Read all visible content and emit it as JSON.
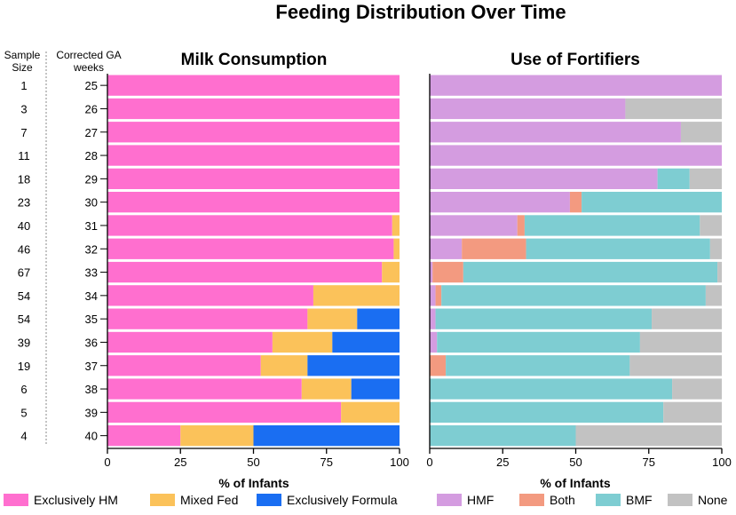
{
  "figure_title": "Feeding Distribution Over Time",
  "headers": {
    "sample_size": [
      "Sample",
      "Size"
    ],
    "corrected_ga": [
      "Corrected GA",
      "weeks"
    ]
  },
  "colors": {
    "Exclusively HM": "#ff6fcf",
    "Mixed Fed": "#fbc25a",
    "Exclusively Formula": "#1a6ef2",
    "HMF": "#d49ce0",
    "Both": "#f39a80",
    "BMF": "#7ecdd2",
    "None": "#c2c2c2"
  },
  "chart_data": [
    {
      "type": "bar",
      "orientation": "horizontal",
      "stacked": true,
      "title": "Milk Consumption",
      "xlabel": "% of Infants",
      "ylabel": "Corrected GA weeks",
      "xlim": [
        0,
        100
      ],
      "xticks": [
        0,
        25,
        50,
        75,
        100
      ],
      "categories": [
        "25",
        "26",
        "27",
        "28",
        "29",
        "30",
        "31",
        "32",
        "33",
        "34",
        "35",
        "36",
        "37",
        "38",
        "39",
        "40"
      ],
      "sample_sizes": [
        1,
        3,
        7,
        11,
        18,
        23,
        40,
        46,
        67,
        54,
        54,
        39,
        19,
        6,
        5,
        4
      ],
      "series": [
        {
          "name": "Exclusively HM",
          "values": [
            100,
            100,
            100,
            100,
            100,
            100,
            97.5,
            98,
            94,
            70.5,
            68.5,
            56.5,
            52.5,
            66.5,
            80,
            25
          ]
        },
        {
          "name": "Mixed Fed",
          "values": [
            0,
            0,
            0,
            0,
            0,
            0,
            2.5,
            2,
            6,
            29.5,
            17,
            20.5,
            16,
            17,
            20,
            25
          ]
        },
        {
          "name": "Exclusively Formula",
          "values": [
            0,
            0,
            0,
            0,
            0,
            0,
            0,
            0,
            0,
            0,
            14.5,
            23,
            31.5,
            16.5,
            0,
            50
          ]
        }
      ],
      "legend": "bottom"
    },
    {
      "type": "bar",
      "orientation": "horizontal",
      "stacked": true,
      "title": "Use of Fortifiers",
      "xlabel": "% of Infants",
      "xlim": [
        0,
        100
      ],
      "xticks": [
        0,
        25,
        50,
        75,
        100
      ],
      "categories": [
        "25",
        "26",
        "27",
        "28",
        "29",
        "30",
        "31",
        "32",
        "33",
        "34",
        "35",
        "36",
        "37",
        "38",
        "39",
        "40"
      ],
      "series": [
        {
          "name": "HMF",
          "values": [
            100,
            67,
            86,
            100,
            78,
            48,
            30,
            11,
            1,
            2,
            2,
            2.5,
            0,
            0,
            0,
            0
          ]
        },
        {
          "name": "Both",
          "values": [
            0,
            0,
            0,
            0,
            0,
            4,
            2.5,
            22,
            10.5,
            2,
            0,
            0,
            5.5,
            0,
            0,
            0
          ]
        },
        {
          "name": "BMF",
          "values": [
            0,
            0,
            0,
            0,
            11,
            48,
            60,
            63,
            87,
            90.5,
            74,
            69.5,
            63,
            83,
            80,
            50
          ]
        },
        {
          "name": "None",
          "values": [
            0,
            33,
            14,
            0,
            11,
            0,
            7.5,
            4,
            1.5,
            5.5,
            24,
            28,
            31.5,
            17,
            20,
            50
          ]
        }
      ],
      "legend": "bottom"
    }
  ]
}
